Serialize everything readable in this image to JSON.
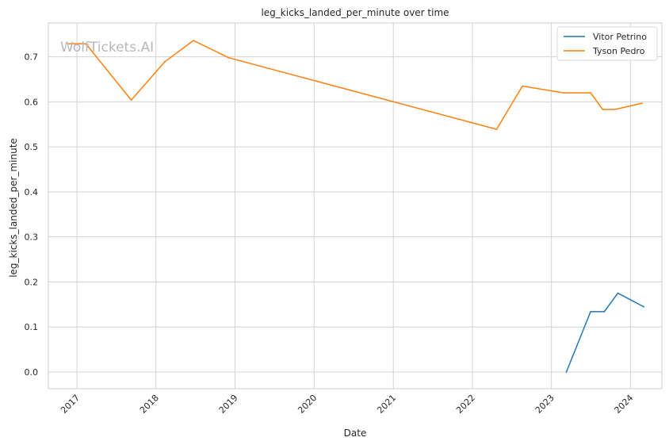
{
  "chart_data": {
    "type": "line",
    "title": "leg_kicks_landed_per_minute over time",
    "xlabel": "Date",
    "ylabel": "leg_kicks_landed_per_minute",
    "watermark": "WolfTickets.AI",
    "grid": true,
    "legend_position": "top-right",
    "xlim": [
      "2016-08-22",
      "2024-05-25"
    ],
    "ylim": [
      -0.037,
      0.775
    ],
    "x_ticks": [
      "2017-01-01",
      "2018-01-01",
      "2019-01-01",
      "2020-01-01",
      "2021-01-01",
      "2022-01-01",
      "2023-01-01",
      "2024-01-01"
    ],
    "x_tick_labels": [
      "2017",
      "2018",
      "2019",
      "2020",
      "2021",
      "2022",
      "2023",
      "2024"
    ],
    "y_ticks": [
      0.0,
      0.1,
      0.2,
      0.3,
      0.4,
      0.5,
      0.6,
      0.7
    ],
    "y_tick_labels": [
      "0.0",
      "0.1",
      "0.2",
      "0.3",
      "0.4",
      "0.5",
      "0.6",
      "0.7"
    ],
    "series": [
      {
        "name": "Vitor Petrino",
        "color": "#1f77b4",
        "x": [
          "2023-03-11",
          "2023-07-01",
          "2023-09-02",
          "2023-11-04",
          "2024-03-02"
        ],
        "y": [
          0.0,
          0.134,
          0.134,
          0.175,
          0.145
        ]
      },
      {
        "name": "Tyson Pedro",
        "color": "#ff7f0e",
        "x": [
          "2016-11-19",
          "2017-02-11",
          "2017-09-09",
          "2018-02-11",
          "2018-06-23",
          "2018-12-02",
          "2022-04-23",
          "2022-08-20",
          "2023-02-25",
          "2023-07-01",
          "2023-08-26",
          "2023-10-21",
          "2024-02-24"
        ],
        "y": [
          0.729,
          0.729,
          0.604,
          0.689,
          0.736,
          0.698,
          0.539,
          0.635,
          0.62,
          0.62,
          0.583,
          0.583,
          0.597
        ]
      }
    ]
  }
}
